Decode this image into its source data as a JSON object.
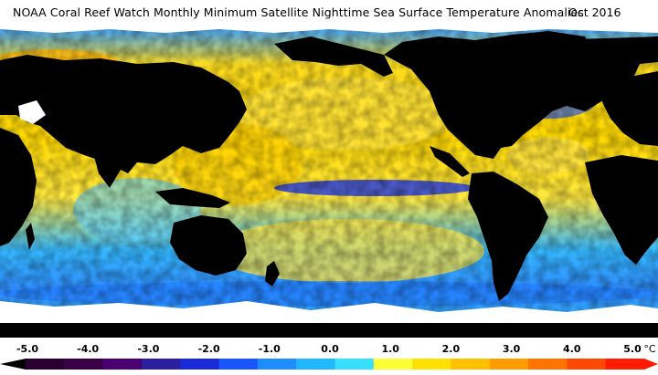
{
  "title": "NOAA Coral Reef Watch Monthly Minimum Satellite Nighttime Sea Surface Temperature Anomalies",
  "date": "Oct 2016",
  "colorbar": {
    "ticks": [
      "-5.0",
      "-4.0",
      "-3.0",
      "-2.0",
      "-1.0",
      "0.0",
      "1.0",
      "2.0",
      "3.0",
      "4.0",
      "5.0"
    ],
    "unit": "°C",
    "colors": [
      "#2a0030",
      "#3a0048",
      "#4a0070",
      "#2b1fa0",
      "#1a2ad8",
      "#1a56ff",
      "#1e8cff",
      "#22b8ff",
      "#37e0ff",
      "#ffff38",
      "#ffe000",
      "#ffc000",
      "#ff9c00",
      "#ff7400",
      "#ff4800",
      "#ff1c00"
    ]
  },
  "legend_layers": {
    "land": "#000000",
    "ice": "#ffffff",
    "ocean_base": "#2f8cff"
  }
}
